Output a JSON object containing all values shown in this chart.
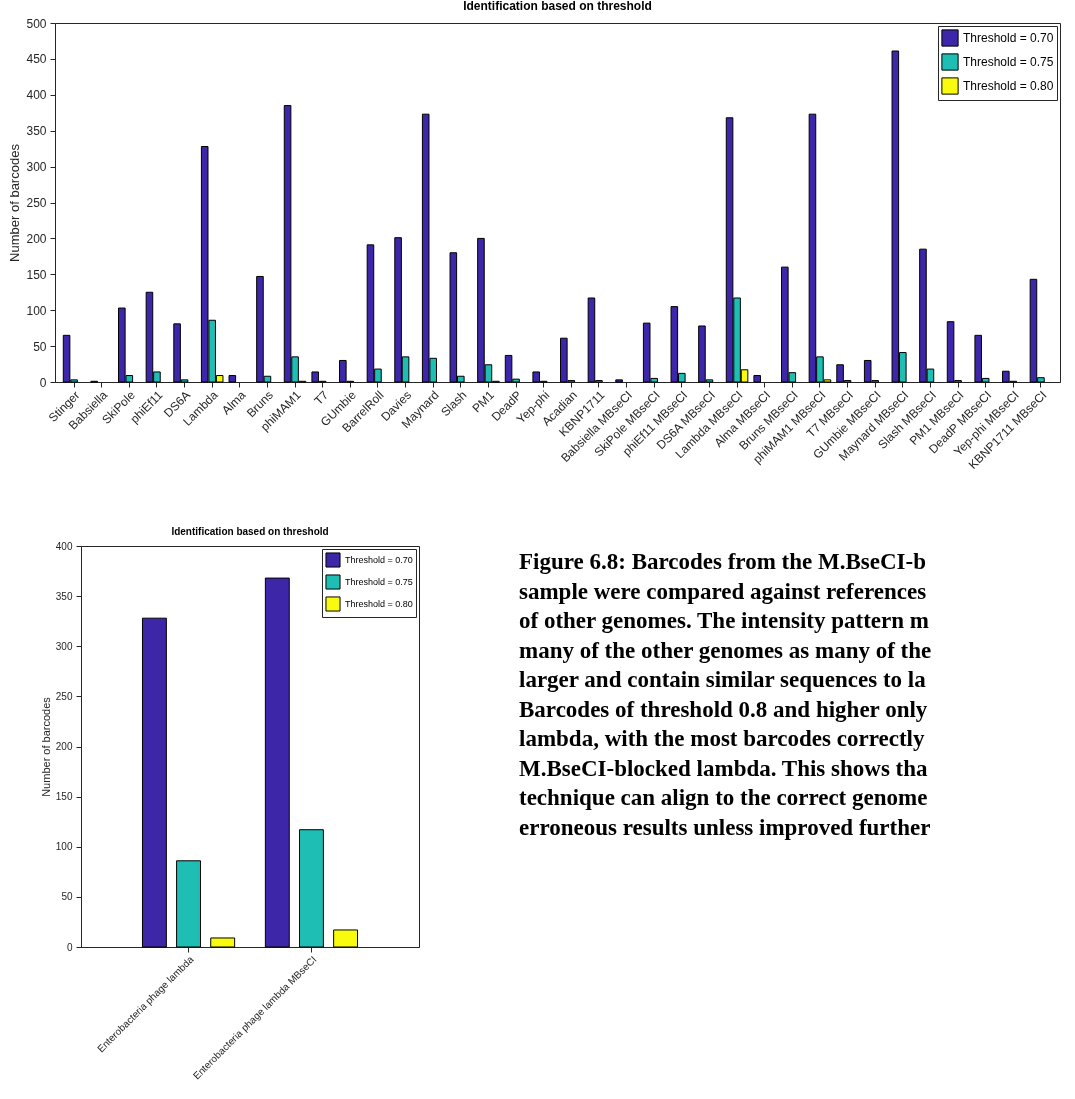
{
  "chart_data": [
    {
      "type": "bar",
      "title": "Identification based on threshold",
      "ylabel": "Number of barcodes",
      "categories": [
        "Stinger",
        "Babsiella",
        "SkiPole",
        "phiEf11",
        "DS6A",
        "Lambda",
        "Alma",
        "Bruns",
        "phiMAM1",
        "T7",
        "GUmbie",
        "BarrelRoll",
        "Davies",
        "Maynard",
        "Slash",
        "PM1",
        "DeadP",
        "Yep-phi",
        "Acadian",
        "KBNP1711",
        "Babsiella MBseCI",
        "SkiPole MBseCI",
        "phiEf11 MBseCI",
        "DS6A MBseCI",
        "Lambda MBseCI",
        "Alma MBseCI",
        "Bruns MBseCI",
        "phiMAM1 MBseCI",
        "T7 MBseCI",
        "GUmbie MBseCI",
        "Maynard MBseCI",
        "Slash MBseCI",
        "PM1 MBseCI",
        "DeadP MBseCI",
        "Yep-phi MBseCI",
        "KBNP1711 MBseCI"
      ],
      "series": [
        {
          "name": "Threshold = 0.70",
          "color": "#3e26a8",
          "values": [
            65,
            1,
            103,
            125,
            81,
            328,
            9,
            147,
            385,
            14,
            30,
            191,
            201,
            373,
            180,
            200,
            37,
            14,
            61,
            117,
            3,
            82,
            105,
            78,
            368,
            9,
            160,
            373,
            24,
            30,
            461,
            185,
            84,
            65,
            15,
            143
          ]
        },
        {
          "name": "Threshold = 0.75",
          "color": "#1ebeb4",
          "values": [
            3,
            0,
            9,
            14,
            3,
            86,
            0,
            8,
            35,
            1,
            1,
            18,
            35,
            33,
            8,
            24,
            4,
            1,
            2,
            2,
            0,
            5,
            12,
            3,
            117,
            0,
            13,
            35,
            2,
            2,
            41,
            18,
            2,
            5,
            1,
            6
          ]
        },
        {
          "name": "Threshold = 0.80",
          "color": "#f9fb0e",
          "values": [
            0,
            0,
            0,
            0,
            0,
            9,
            0,
            0,
            1,
            0,
            0,
            0,
            0,
            0,
            0,
            1,
            0,
            0,
            0,
            0,
            0,
            0,
            0,
            0,
            17,
            0,
            0,
            3,
            0,
            0,
            0,
            0,
            0,
            0,
            0,
            0
          ]
        }
      ],
      "ylim": [
        0,
        500
      ],
      "yticks": [
        0,
        50,
        100,
        150,
        200,
        250,
        300,
        350,
        400,
        450,
        500
      ],
      "grid": false,
      "legend": "top right"
    },
    {
      "type": "bar",
      "title": "Identification based on threshold",
      "ylabel": "Number of barcodes",
      "categories": [
        "Enterobacteria phage lambda",
        "Enterobacteria phage lambda MBseCI"
      ],
      "series": [
        {
          "name": "Threshold = 0.70",
          "color": "#3e26a8",
          "values": [
            328,
            368
          ]
        },
        {
          "name": "Threshold = 0.75",
          "color": "#1ebeb4",
          "values": [
            86,
            117
          ]
        },
        {
          "name": "Threshold = 0.80",
          "color": "#f9fb0e",
          "values": [
            9,
            17
          ]
        }
      ],
      "ylim": [
        0,
        400
      ],
      "yticks": [
        0,
        50,
        100,
        150,
        200,
        250,
        300,
        350,
        400
      ],
      "grid": false,
      "legend": "top right",
      "annotations": [
        "Figure 6.8: Barcodes from the M.BseCI-b",
        "sample were compared against references",
        "of other genomes. The intensity pattern m",
        "many of the other genomes as many of the",
        "larger and contain similar sequences to la",
        "Barcodes of threshold 0.8 and higher only",
        "lambda, with the most barcodes correctly",
        "M.BseCI-blocked lambda. This shows tha",
        "technique can align to the correct genome",
        "erroneous results unless improved further"
      ]
    }
  ]
}
